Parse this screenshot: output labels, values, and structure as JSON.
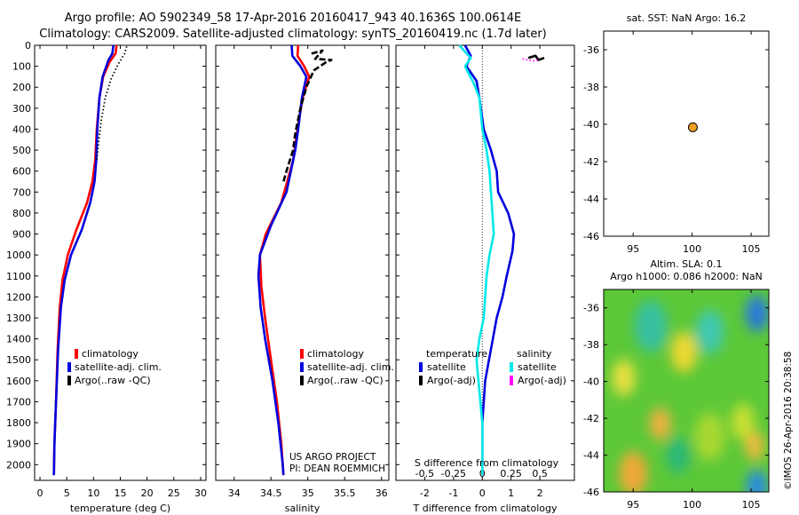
{
  "title_line1": "Argo profile: AO 5902349_58 17-Apr-2016 20160417_943 40.1636S 100.0614E",
  "title_line2": "Climatology: CARS2009. Satellite-adjusted climatology: synTS_20160419.nc (1.7d later)",
  "sst_title": "sat. SST: NaN Argo: 16.2",
  "sla_title_line1": "Altim. SLA: 0.1",
  "sla_title_line2": "Argo h1000: 0.086 h2000: NaN",
  "project_line1": "US ARGO PROJECT",
  "project_line2": "PI: DEAN ROEMMICH",
  "watermark": "©IMOS 26-Apr-2016 20:38:58",
  "colors": {
    "climatology": "#ff0000",
    "satellite": "#0000dd",
    "argo": "#000000",
    "satellite_salinity": "#00e8e8",
    "argo_salinity_adj": "#ff00ff",
    "marker": "#f0a020"
  },
  "chart_data": [
    {
      "id": "temperature",
      "type": "line",
      "xlabel": "temperature (deg C)",
      "ylabel": "",
      "xlim": [
        -1,
        31
      ],
      "ylim": [
        2075,
        0
      ],
      "xticks": [
        0,
        5,
        10,
        15,
        20,
        25,
        30
      ],
      "yticks": [
        0,
        100,
        200,
        300,
        400,
        500,
        600,
        700,
        800,
        900,
        1000,
        1100,
        1200,
        1300,
        1400,
        1500,
        1600,
        1700,
        1800,
        1900,
        2000
      ],
      "legend": [
        "climatology",
        "satellite-adj. clim.",
        "Argo(..raw -QC)"
      ],
      "series": [
        {
          "name": "climatology",
          "color": "#ff0000",
          "points": [
            [
              14.3,
              0
            ],
            [
              14.1,
              40
            ],
            [
              13.0,
              80
            ],
            [
              11.8,
              150
            ],
            [
              11.1,
              250
            ],
            [
              10.6,
              400
            ],
            [
              10.3,
              550
            ],
            [
              9.8,
              650
            ],
            [
              8.8,
              750
            ],
            [
              6.8,
              880
            ],
            [
              5.2,
              1000
            ],
            [
              4.2,
              1120
            ],
            [
              3.7,
              1250
            ],
            [
              3.3,
              1450
            ],
            [
              3.0,
              1700
            ],
            [
              2.7,
              1900
            ],
            [
              2.6,
              2050
            ]
          ]
        },
        {
          "name": "satellite-adj. clim.",
          "color": "#0000dd",
          "points": [
            [
              13.7,
              0
            ],
            [
              13.5,
              40
            ],
            [
              12.8,
              70
            ],
            [
              11.7,
              150
            ],
            [
              11.1,
              250
            ],
            [
              10.7,
              400
            ],
            [
              10.5,
              550
            ],
            [
              10.2,
              650
            ],
            [
              9.4,
              750
            ],
            [
              7.8,
              880
            ],
            [
              5.8,
              1000
            ],
            [
              4.6,
              1120
            ],
            [
              3.9,
              1250
            ],
            [
              3.4,
              1450
            ],
            [
              3.0,
              1700
            ],
            [
              2.7,
              1900
            ],
            [
              2.6,
              2050
            ]
          ]
        },
        {
          "name": "Argo(..raw -QC)",
          "color": "#000000",
          "dotted": true,
          "points": [
            [
              16.2,
              5
            ],
            [
              15.8,
              40
            ],
            [
              14.6,
              90
            ],
            [
              13.3,
              160
            ],
            [
              12.2,
              250
            ],
            [
              11.5,
              350
            ],
            [
              11.0,
              450
            ],
            [
              10.6,
              550
            ]
          ]
        }
      ]
    },
    {
      "id": "salinity",
      "type": "line",
      "xlabel": "salinity",
      "ylabel": "",
      "xlim": [
        33.75,
        36.1
      ],
      "ylim": [
        2075,
        0
      ],
      "xticks": [
        34,
        34.5,
        35,
        35.5,
        36
      ],
      "xticklabels": [
        "34",
        "34.5",
        "35",
        "35.5",
        "36"
      ],
      "legend": [
        "climatology",
        "satellite-adj. clim.",
        "Argo(..raw -QC)"
      ],
      "series": [
        {
          "name": "climatology",
          "color": "#ff0000",
          "points": [
            [
              34.87,
              0
            ],
            [
              34.86,
              50
            ],
            [
              34.95,
              100
            ],
            [
              35.02,
              150
            ],
            [
              34.93,
              250
            ],
            [
              34.86,
              400
            ],
            [
              34.8,
              550
            ],
            [
              34.64,
              750
            ],
            [
              34.43,
              900
            ],
            [
              34.35,
              1000
            ],
            [
              34.37,
              1150
            ],
            [
              34.42,
              1300
            ],
            [
              34.5,
              1500
            ],
            [
              34.58,
              1700
            ],
            [
              34.64,
              1900
            ],
            [
              34.67,
              2050
            ]
          ]
        },
        {
          "name": "satellite-adj. clim.",
          "color": "#0000dd",
          "points": [
            [
              34.78,
              0
            ],
            [
              34.79,
              50
            ],
            [
              34.9,
              100
            ],
            [
              34.98,
              150
            ],
            [
              34.92,
              250
            ],
            [
              34.87,
              400
            ],
            [
              34.83,
              500
            ],
            [
              34.71,
              700
            ],
            [
              34.5,
              860
            ],
            [
              34.35,
              1000
            ],
            [
              34.33,
              1100
            ],
            [
              34.36,
              1250
            ],
            [
              34.42,
              1400
            ],
            [
              34.52,
              1600
            ],
            [
              34.6,
              1800
            ],
            [
              34.66,
              2000
            ],
            [
              34.67,
              2050
            ]
          ]
        },
        {
          "name": "Argo(..raw -QC)",
          "color": "#000000",
          "dashed": true,
          "points": [
            [
              35.05,
              40
            ],
            [
              35.2,
              25
            ],
            [
              35.1,
              65
            ],
            [
              35.32,
              70
            ],
            [
              35.25,
              80
            ],
            [
              35.08,
              120
            ],
            [
              34.98,
              200
            ],
            [
              34.9,
              300
            ],
            [
              34.83,
              420
            ],
            [
              34.8,
              500
            ],
            [
              34.71,
              600
            ],
            [
              34.67,
              650
            ]
          ]
        }
      ]
    },
    {
      "id": "difference",
      "type": "line",
      "xlabel": "T difference from climatology",
      "secondary_xlabel": "S difference from climatology",
      "xlim": [
        -3,
        3.2
      ],
      "ylim": [
        2075,
        0
      ],
      "xticks": [
        -2,
        -1,
        0,
        1,
        2
      ],
      "xticklabels": [
        "-2",
        "-1",
        "0",
        "1",
        "2"
      ],
      "secondary_xticks": [
        -2,
        -1,
        0,
        1,
        2
      ],
      "secondary_xticklabels": [
        "-0.5",
        "-0.25",
        "0",
        "0.25",
        "0.5"
      ],
      "legend_heading_temperature": "temperature",
      "legend_heading_salinity": "salinity",
      "legend_temperature": [
        "satellite",
        "Argo(-adj)"
      ],
      "legend_salinity": [
        "satellite",
        "Argo(-adj)"
      ],
      "series": [
        {
          "name": "temperature satellite",
          "color": "#0000dd",
          "points": [
            [
              -0.6,
              0
            ],
            [
              -0.4,
              50
            ],
            [
              -0.55,
              100
            ],
            [
              -0.2,
              170
            ],
            [
              -0.1,
              250
            ],
            [
              0.05,
              400
            ],
            [
              0.3,
              500
            ],
            [
              0.5,
              600
            ],
            [
              0.55,
              700
            ],
            [
              0.9,
              800
            ],
            [
              1.1,
              900
            ],
            [
              1.05,
              980
            ],
            [
              0.85,
              1100
            ],
            [
              0.7,
              1200
            ],
            [
              0.5,
              1300
            ],
            [
              0.3,
              1450
            ],
            [
              0.1,
              1600
            ],
            [
              0.0,
              1800
            ],
            [
              0.0,
              2050
            ]
          ]
        },
        {
          "name": "salinity satellite",
          "color": "#00e8e8",
          "points": [
            [
              -0.8,
              0
            ],
            [
              -0.4,
              60
            ],
            [
              -0.6,
              100
            ],
            [
              -0.3,
              180
            ],
            [
              -0.1,
              250
            ],
            [
              0.0,
              400
            ],
            [
              0.15,
              500
            ],
            [
              0.25,
              600
            ],
            [
              0.3,
              700
            ],
            [
              0.35,
              800
            ],
            [
              0.4,
              900
            ],
            [
              0.25,
              1000
            ],
            [
              0.15,
              1100
            ],
            [
              0.1,
              1200
            ],
            [
              0.05,
              1300
            ],
            [
              -0.1,
              1400
            ],
            [
              -0.2,
              1500
            ],
            [
              -0.1,
              1650
            ],
            [
              0.0,
              1800
            ],
            [
              0.0,
              2050
            ]
          ]
        },
        {
          "name": "temperature Argo(-adj)",
          "color": "#000000",
          "points": [
            [
              1.6,
              60
            ],
            [
              1.85,
              50
            ],
            [
              1.95,
              70
            ],
            [
              2.15,
              60
            ]
          ]
        },
        {
          "name": "salinity Argo(-adj)",
          "color": "#ff00ff",
          "dotted": true,
          "points": [
            [
              1.4,
              65
            ],
            [
              1.75,
              75
            ],
            [
              2.0,
              68
            ]
          ]
        }
      ]
    },
    {
      "id": "sst_map",
      "type": "scatter",
      "title": "sat. SST: NaN Argo: 16.2",
      "xlim": [
        92.5,
        106.5
      ],
      "ylim": [
        -46,
        -35
      ],
      "xticks": [
        95,
        100,
        105
      ],
      "yticks": [
        -36,
        -38,
        -40,
        -42,
        -44,
        -46
      ],
      "points": [
        [
          100.06,
          -40.16
        ]
      ]
    },
    {
      "id": "sla_map",
      "type": "heatmap",
      "title": "Altim. SLA: 0.1 / Argo h1000: 0.086 h2000: NaN",
      "xlim": [
        92.5,
        106.5
      ],
      "ylim": [
        -46,
        -35
      ],
      "xticks": [
        95,
        100,
        105
      ],
      "yticks": [
        -36,
        -38,
        -40,
        -42,
        -44,
        -46
      ],
      "blobs": [
        {
          "lon": 105.5,
          "lat": -36.3,
          "color": "#2a7ad8",
          "r": 1.0
        },
        {
          "lon": 105.5,
          "lat": -45.7,
          "color": "#2a8ae0",
          "r": 0.9
        },
        {
          "lon": 96.5,
          "lat": -37.0,
          "color": "#38c0a0",
          "r": 1.4
        },
        {
          "lon": 101.5,
          "lat": -37.3,
          "color": "#40c8b0",
          "r": 1.2
        },
        {
          "lon": 99.3,
          "lat": -38.4,
          "color": "#f0d830",
          "r": 1.1
        },
        {
          "lon": 94.2,
          "lat": -39.8,
          "color": "#e8e040",
          "r": 1.0
        },
        {
          "lon": 95.0,
          "lat": -45.0,
          "color": "#f0a838",
          "r": 1.2
        },
        {
          "lon": 97.3,
          "lat": -42.3,
          "color": "#f0b040",
          "r": 0.9
        },
        {
          "lon": 101.5,
          "lat": -43.0,
          "color": "#a8d830",
          "r": 1.3
        },
        {
          "lon": 104.3,
          "lat": -42.2,
          "color": "#c8e030",
          "r": 1.0
        },
        {
          "lon": 105.3,
          "lat": -43.5,
          "color": "#f0b840",
          "r": 0.8
        },
        {
          "lon": 98.8,
          "lat": -44.0,
          "color": "#2cb878",
          "r": 1.0
        }
      ]
    }
  ]
}
